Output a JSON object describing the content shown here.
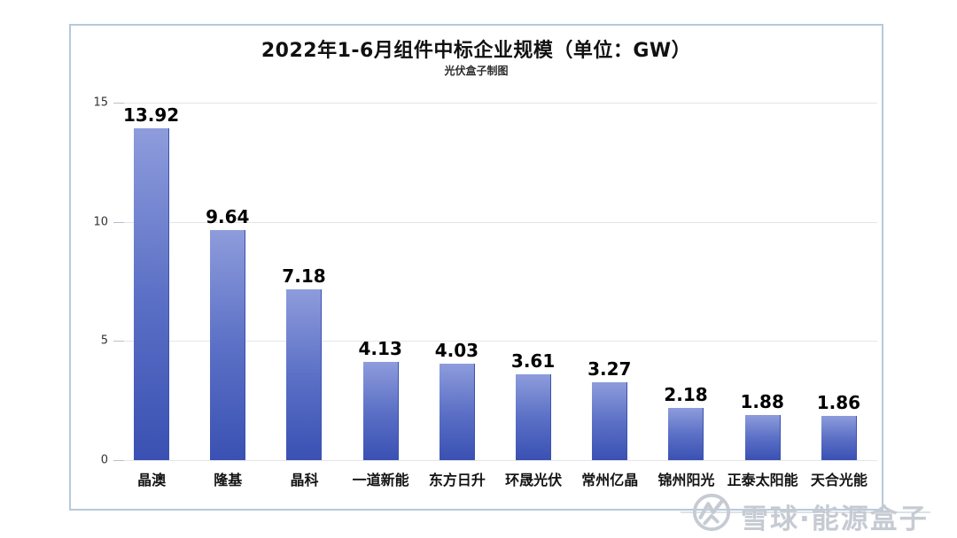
{
  "card": {
    "title": "2022年1-6月组件中标企业规模（单位：GW）",
    "subtitle": "光伏盒子制图"
  },
  "chart_data": {
    "type": "bar",
    "title": "2022年1-6月组件中标企业规模（单位：GW）",
    "subtitle": "光伏盒子制图",
    "categories": [
      "晶澳",
      "隆基",
      "晶科",
      "一道新能",
      "东方日升",
      "环晟光伏",
      "常州亿晶",
      "锦州阳光",
      "正泰太阳能",
      "天合光能"
    ],
    "values": [
      13.92,
      9.64,
      7.18,
      4.13,
      4.03,
      3.61,
      3.27,
      2.18,
      1.88,
      1.86
    ],
    "value_labels": [
      "13.92",
      "9.64",
      "7.18",
      "4.13",
      "4.03",
      "3.61",
      "3.27",
      "2.18",
      "1.88",
      "1.86"
    ],
    "xlabel": "",
    "ylabel": "",
    "ylim": [
      0,
      15
    ],
    "yticks": [
      0,
      5,
      10,
      15
    ],
    "grid": true,
    "legend": false,
    "bar_color_top": "#8e9cdc",
    "bar_color_bottom": "#3a51b3",
    "gridline_color": "#e2e5ea"
  },
  "watermark": {
    "logo": "xueqiu-logo",
    "text": "雪球·能源盒子",
    "color": "#c6cbd3"
  }
}
